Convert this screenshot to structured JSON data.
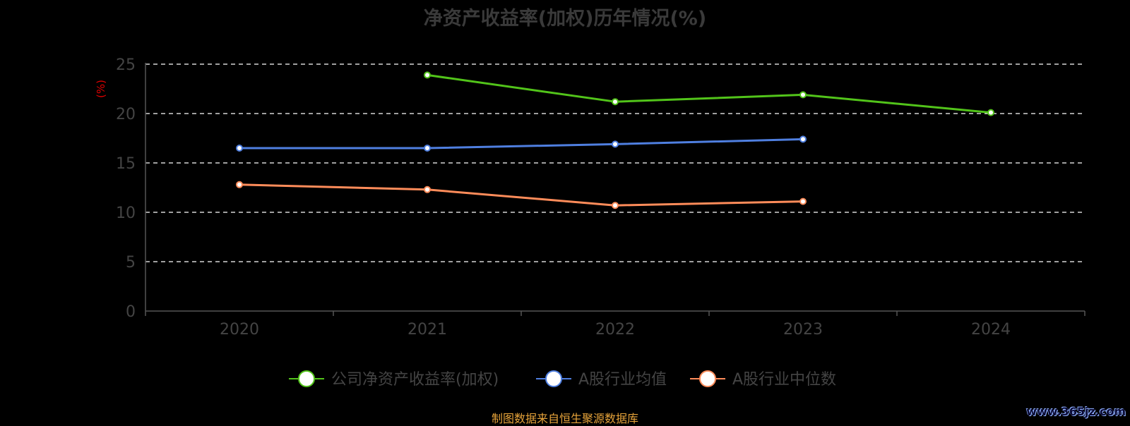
{
  "chart_data": {
    "type": "line",
    "title": "净资产收益率(加权)历年情况(%)",
    "ylabel": "(%)",
    "xlabel": "",
    "categories": [
      "2020",
      "2021",
      "2022",
      "2023",
      "2024"
    ],
    "ylim": [
      0,
      25
    ],
    "yticks": [
      "0",
      "5",
      "10",
      "15",
      "20",
      "25"
    ],
    "grid": true,
    "legend_position": "bottom",
    "series": [
      {
        "name": "公司净资产收益率(加权)",
        "color": "#52c41a",
        "values": [
          null,
          23.9,
          21.2,
          21.9,
          20.1
        ]
      },
      {
        "name": "A股行业均值",
        "color": "#4f7fe0",
        "values": [
          16.5,
          16.5,
          16.9,
          17.4,
          null
        ]
      },
      {
        "name": "A股行业中位数",
        "color": "#ff8c5a",
        "values": [
          12.8,
          12.3,
          10.7,
          11.1,
          null
        ]
      }
    ]
  },
  "footer": {
    "source": "制图数据来自恒生聚源数据库",
    "watermark": "www.365jz.com"
  }
}
